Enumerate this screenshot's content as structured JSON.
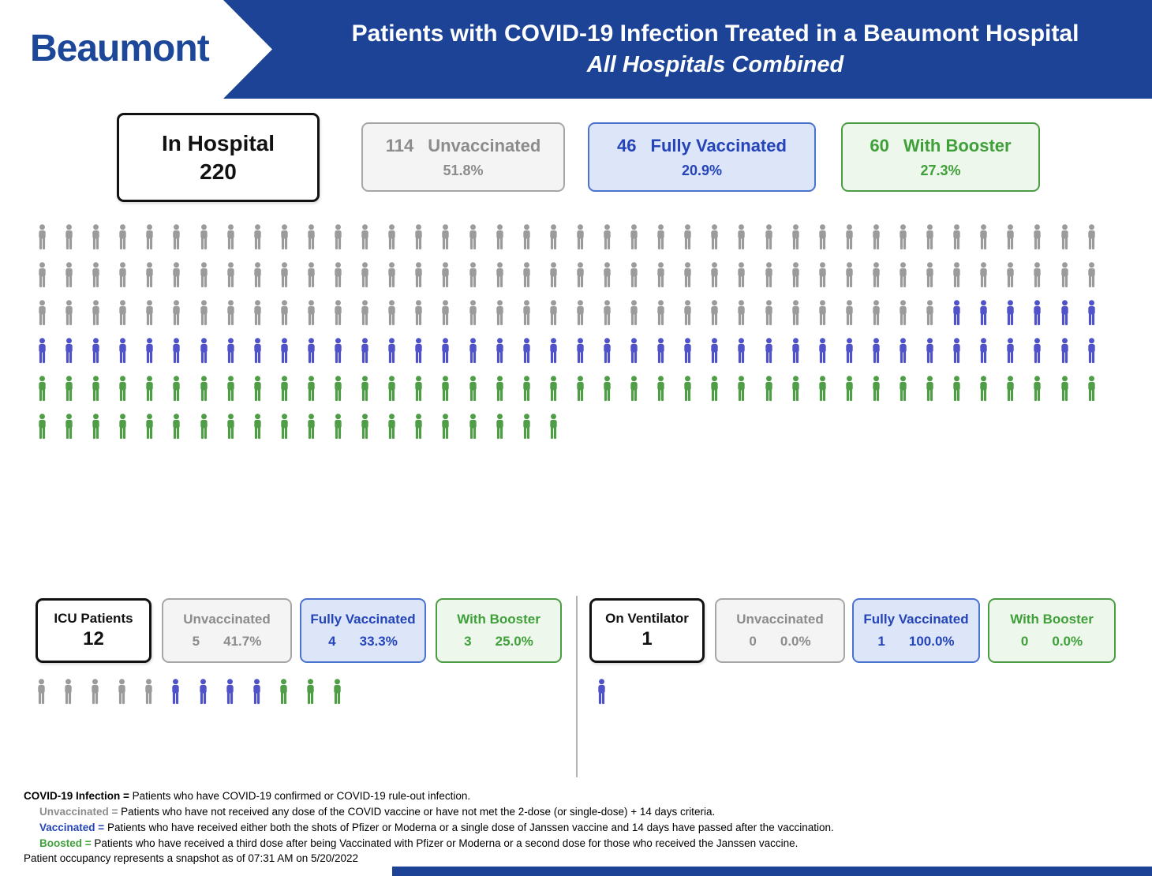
{
  "header": {
    "logo": "Beaumont",
    "title_line1": "Patients with COVID-19 Infection Treated in a Beaumont Hospital",
    "title_line2": "All Hospitals Combined"
  },
  "colors": {
    "header_blue": "#1C4396",
    "unvaccinated_gray": "#9B9B9B",
    "vaccinated_blue": "#4F52C8",
    "boosted_green": "#4F9E47"
  },
  "summary": {
    "in_hospital": {
      "label": "In Hospital",
      "value": "220"
    },
    "unvaccinated": {
      "count": "114",
      "label": "Unvaccinated",
      "pct": "51.8%"
    },
    "fully_vaccinated": {
      "count": "46",
      "label": "Fully Vaccinated",
      "pct": "20.9%"
    },
    "with_booster": {
      "count": "60",
      "label": "With Booster",
      "pct": "27.3%"
    }
  },
  "icu": {
    "title": "ICU Patients",
    "value": "12",
    "unvaccinated": {
      "label": "Unvaccinated",
      "count": "5",
      "pct": "41.7%"
    },
    "fully_vaccinated": {
      "label": "Fully Vaccinated",
      "count": "4",
      "pct": "33.3%"
    },
    "with_booster": {
      "label": "With Booster",
      "count": "3",
      "pct": "25.0%"
    }
  },
  "ventilator": {
    "title": "On Ventilator",
    "value": "1",
    "unvaccinated": {
      "label": "Unvaccinated",
      "count": "0",
      "pct": "0.0%"
    },
    "fully_vaccinated": {
      "label": "Fully Vaccinated",
      "count": "1",
      "pct": "100.0%"
    },
    "with_booster": {
      "label": "With Booster",
      "count": "0",
      "pct": "0.0%"
    }
  },
  "footnotes": [
    {
      "term": "COVID-19 Infection =",
      "text": " Patients who have COVID-19 confirmed or COVID-19 rule-out infection."
    },
    {
      "term": "Unvaccinated =",
      "text": " Patients who have not received any dose of the COVID vaccine or have not met the 2-dose (or single-dose) + 14 days criteria."
    },
    {
      "term": "Vaccinated =",
      "text": " Patients who have received either both the shots of Pfizer or Moderna or a single dose of Janssen vaccine and 14 days have passed after the vaccination."
    },
    {
      "term": "Boosted =",
      "text": " Patients who have received a third dose after being Vaccinated with Pfizer or Moderna or a second dose for those who received the Janssen vaccine."
    }
  ],
  "snapshot_note": "Patient occupancy represents a snapshot as of 07:31 AM on 5/20/2022",
  "chart_data": {
    "type": "pictograph",
    "unit": "1 icon = 1 patient",
    "charts": [
      {
        "name": "In Hospital",
        "total": 220,
        "icons_per_row": 40,
        "segments": [
          {
            "label": "Unvaccinated",
            "count": 114,
            "pct": 51.8,
            "color": "#9B9B9B"
          },
          {
            "label": "Fully Vaccinated",
            "count": 46,
            "pct": 20.9,
            "color": "#4F52C8"
          },
          {
            "label": "With Booster",
            "count": 60,
            "pct": 27.3,
            "color": "#4F9E47"
          }
        ]
      },
      {
        "name": "ICU Patients",
        "total": 12,
        "icons_per_row": 40,
        "segments": [
          {
            "label": "Unvaccinated",
            "count": 5,
            "pct": 41.7,
            "color": "#9B9B9B"
          },
          {
            "label": "Fully Vaccinated",
            "count": 4,
            "pct": 33.3,
            "color": "#4F52C8"
          },
          {
            "label": "With Booster",
            "count": 3,
            "pct": 25.0,
            "color": "#4F9E47"
          }
        ]
      },
      {
        "name": "On Ventilator",
        "total": 1,
        "icons_per_row": 40,
        "segments": [
          {
            "label": "Unvaccinated",
            "count": 0,
            "pct": 0.0,
            "color": "#9B9B9B"
          },
          {
            "label": "Fully Vaccinated",
            "count": 1,
            "pct": 100.0,
            "color": "#4F52C8"
          },
          {
            "label": "With Booster",
            "count": 0,
            "pct": 0.0,
            "color": "#4F9E47"
          }
        ]
      }
    ]
  }
}
